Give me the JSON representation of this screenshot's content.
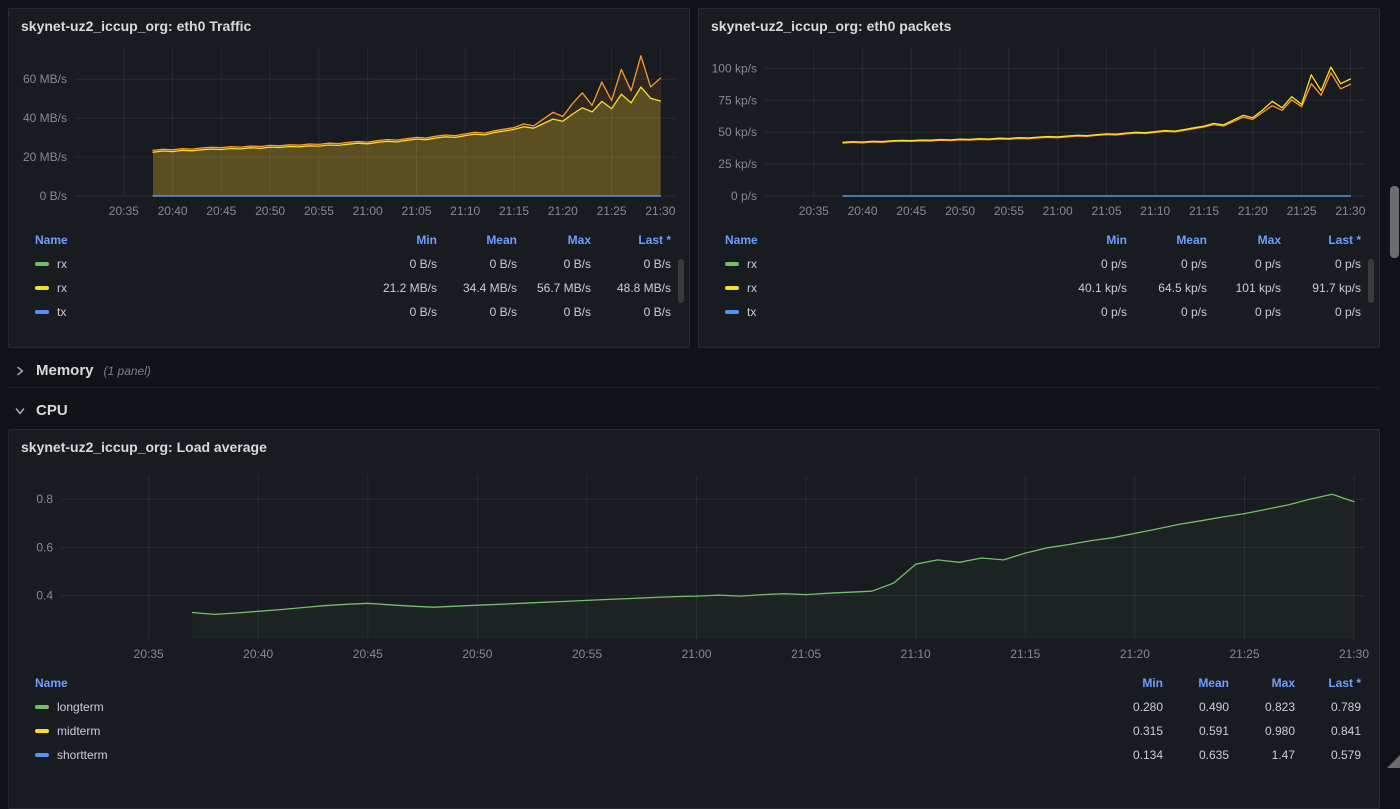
{
  "colors": {
    "green": "#73bf69",
    "yellow": "#fade2a",
    "blue": "#5794f2",
    "orange": "#ff9830",
    "link": "#6e9fff",
    "panel_bg": "#181b1f",
    "page_bg": "#111217"
  },
  "rows": [
    {
      "label": "Memory",
      "meta": "(1 panel)",
      "state": "collapsed"
    },
    {
      "label": "CPU",
      "meta": "",
      "state": "expanded"
    }
  ],
  "panels": [
    {
      "title": "skynet-uz2_iccup_org: eth0 Traffic",
      "legend": {
        "headers": [
          "Name",
          "Min",
          "Mean",
          "Max",
          "Last *"
        ],
        "rows": [
          {
            "name": "rx",
            "color": "#73bf69",
            "values": [
              "0 B/s",
              "0 B/s",
              "0 B/s",
              "0 B/s"
            ]
          },
          {
            "name": "rx",
            "color": "#fade2a",
            "values": [
              "21.2 MB/s",
              "34.4 MB/s",
              "56.7 MB/s",
              "48.8 MB/s"
            ]
          },
          {
            "name": "tx",
            "color": "#5794f2",
            "values": [
              "0 B/s",
              "0 B/s",
              "0 B/s",
              "0 B/s"
            ]
          }
        ]
      }
    },
    {
      "title": "skynet-uz2_iccup_org: eth0 packets",
      "legend": {
        "headers": [
          "Name",
          "Min",
          "Mean",
          "Max",
          "Last *"
        ],
        "rows": [
          {
            "name": "rx",
            "color": "#73bf69",
            "values": [
              "0 p/s",
              "0 p/s",
              "0 p/s",
              "0 p/s"
            ]
          },
          {
            "name": "rx",
            "color": "#fade2a",
            "values": [
              "40.1 kp/s",
              "64.5 kp/s",
              "101 kp/s",
              "91.7 kp/s"
            ]
          },
          {
            "name": "tx",
            "color": "#5794f2",
            "values": [
              "0 p/s",
              "0 p/s",
              "0 p/s",
              "0 p/s"
            ]
          }
        ]
      }
    },
    {
      "title": "skynet-uz2_iccup_org: Load average",
      "legend": {
        "headers": [
          "Name",
          "Min",
          "Mean",
          "Max",
          "Last *"
        ],
        "rows": [
          {
            "name": "longterm",
            "color": "#73bf69",
            "values": [
              "0.280",
              "0.490",
              "0.823",
              "0.789"
            ]
          },
          {
            "name": "midterm",
            "color": "#fade2a",
            "values": [
              "0.315",
              "0.591",
              "0.980",
              "0.841"
            ]
          },
          {
            "name": "shortterm",
            "color": "#5794f2",
            "values": [
              "0.134",
              "0.635",
              "1.47",
              "0.579"
            ]
          }
        ]
      }
    }
  ],
  "chart_data": [
    {
      "type": "line",
      "title": "skynet-uz2_iccup_org: eth0 Traffic",
      "unit": "MB/s",
      "margin_left": 58,
      "xlim": [
        0,
        61.5
      ],
      "ylim": [
        0,
        76
      ],
      "xticks": [
        {
          "v": 5,
          "label": "20:35"
        },
        {
          "v": 10,
          "label": "20:40"
        },
        {
          "v": 15,
          "label": "20:45"
        },
        {
          "v": 20,
          "label": "20:50"
        },
        {
          "v": 25,
          "label": "20:55"
        },
        {
          "v": 30,
          "label": "21:00"
        },
        {
          "v": 35,
          "label": "21:05"
        },
        {
          "v": 40,
          "label": "21:10"
        },
        {
          "v": 45,
          "label": "21:15"
        },
        {
          "v": 50,
          "label": "21:20"
        },
        {
          "v": 55,
          "label": "21:25"
        },
        {
          "v": 60,
          "label": "21:30"
        }
      ],
      "yticks": [
        {
          "v": 0,
          "label": "0 B/s"
        },
        {
          "v": 20,
          "label": "20 MB/s"
        },
        {
          "v": 40,
          "label": "40 MB/s"
        },
        {
          "v": 60,
          "label": "60 MB/s"
        }
      ],
      "series": [
        {
          "name": "rx",
          "color": "#73bf69",
          "start": 8,
          "step": 52,
          "fill": 0,
          "values": [
            0,
            0
          ]
        },
        {
          "name": "rx",
          "color": "#ff9830",
          "start": 8,
          "step": 1,
          "fill": 0.1,
          "values": [
            23.4,
            24.0,
            23.7,
            24.3,
            24.1,
            24.7,
            25.0,
            24.8,
            25.3,
            25.1,
            25.7,
            25.4,
            26.0,
            25.8,
            26.3,
            26.1,
            26.7,
            26.5,
            27.1,
            26.9,
            27.5,
            28.0,
            27.7,
            28.4,
            29.0,
            28.7,
            29.5,
            30.1,
            29.8,
            30.7,
            31.3,
            31.0,
            31.9,
            32.7,
            32.3,
            33.5,
            34.3,
            35.1,
            37.0,
            36.0,
            39.5,
            43.0,
            40.8,
            47.5,
            53.0,
            46.5,
            58.5,
            49.0,
            65.0,
            54.0,
            72.0,
            56.0,
            60.5
          ]
        },
        {
          "name": "rx",
          "color": "#fade2a",
          "start": 8,
          "step": 1,
          "fill": 0.22,
          "values": [
            22.5,
            23.1,
            22.8,
            23.4,
            23.2,
            23.8,
            24.1,
            23.9,
            24.4,
            24.2,
            24.8,
            24.5,
            25.1,
            24.9,
            25.4,
            25.2,
            25.8,
            25.6,
            26.2,
            26.0,
            26.6,
            27.1,
            26.8,
            27.5,
            28.1,
            27.8,
            28.6,
            29.2,
            28.9,
            29.8,
            30.4,
            30.1,
            31.0,
            31.8,
            31.4,
            32.6,
            33.4,
            34.2,
            35.6,
            34.8,
            37.2,
            39.5,
            38.4,
            42.1,
            45.3,
            43.2,
            48.6,
            44.9,
            52.3,
            47.8,
            55.9,
            50.2,
            48.8
          ]
        },
        {
          "name": "tx",
          "color": "#5794f2",
          "start": 8,
          "step": 52,
          "fill": 0,
          "values": [
            0,
            0
          ]
        }
      ]
    },
    {
      "type": "line",
      "title": "skynet-uz2_iccup_org: eth0 packets",
      "unit": "kp/s",
      "margin_left": 58,
      "xlim": [
        0,
        61.5
      ],
      "ylim": [
        0,
        116
      ],
      "xticks": [
        {
          "v": 5,
          "label": "20:35"
        },
        {
          "v": 10,
          "label": "20:40"
        },
        {
          "v": 15,
          "label": "20:45"
        },
        {
          "v": 20,
          "label": "20:50"
        },
        {
          "v": 25,
          "label": "20:55"
        },
        {
          "v": 30,
          "label": "21:00"
        },
        {
          "v": 35,
          "label": "21:05"
        },
        {
          "v": 40,
          "label": "21:10"
        },
        {
          "v": 45,
          "label": "21:15"
        },
        {
          "v": 50,
          "label": "21:20"
        },
        {
          "v": 55,
          "label": "21:25"
        },
        {
          "v": 60,
          "label": "21:30"
        }
      ],
      "yticks": [
        {
          "v": 0,
          "label": "0 p/s"
        },
        {
          "v": 25,
          "label": "25 kp/s"
        },
        {
          "v": 50,
          "label": "50 kp/s"
        },
        {
          "v": 75,
          "label": "75 kp/s"
        },
        {
          "v": 100,
          "label": "100 kp/s"
        }
      ],
      "series": [
        {
          "name": "rx",
          "color": "#73bf69",
          "start": 8,
          "step": 52,
          "fill": 0,
          "values": [
            0,
            0
          ]
        },
        {
          "name": "rx",
          "color": "#ff9830",
          "start": 8,
          "step": 1,
          "fill": 0,
          "values": [
            41.5,
            42.0,
            41.7,
            42.3,
            42.1,
            42.7,
            43.0,
            42.8,
            43.3,
            43.1,
            43.7,
            43.4,
            44.0,
            43.8,
            44.3,
            44.1,
            44.7,
            44.5,
            45.1,
            44.9,
            45.5,
            46.0,
            45.7,
            46.4,
            47.0,
            46.7,
            47.5,
            48.1,
            47.8,
            48.7,
            49.3,
            49.0,
            49.9,
            50.7,
            50.3,
            51.5,
            52.8,
            54.1,
            56.0,
            54.9,
            58.3,
            61.8,
            60.0,
            65.5,
            70.8,
            67.2,
            75.4,
            70.0,
            88.0,
            79.0,
            96.5,
            84.0,
            87.5
          ]
        },
        {
          "name": "rx",
          "color": "#fade2a",
          "start": 8,
          "step": 1,
          "fill": 0,
          "values": [
            42.1,
            42.6,
            42.3,
            42.9,
            42.7,
            43.3,
            43.6,
            43.4,
            43.9,
            43.7,
            44.3,
            44.0,
            44.6,
            44.4,
            44.9,
            44.7,
            45.3,
            45.1,
            45.7,
            45.5,
            46.1,
            46.6,
            46.3,
            47.0,
            47.6,
            47.3,
            48.1,
            48.7,
            48.4,
            49.3,
            49.9,
            49.6,
            50.5,
            51.3,
            50.9,
            52.1,
            53.5,
            54.8,
            56.9,
            55.7,
            59.5,
            63.2,
            61.4,
            67.3,
            74.2,
            69.1,
            77.8,
            71.8,
            95.0,
            82.5,
            101.0,
            88.0,
            91.7
          ]
        },
        {
          "name": "tx",
          "color": "#5794f2",
          "start": 8,
          "step": 52,
          "fill": 0,
          "values": [
            0,
            0
          ]
        }
      ]
    },
    {
      "type": "line",
      "title": "skynet-uz2_iccup_org: Load average",
      "unit": "load",
      "margin_left": 44,
      "xlim": [
        1,
        60.5
      ],
      "ylim": [
        0.22,
        0.9
      ],
      "xticks": [
        {
          "v": 5,
          "label": "20:35"
        },
        {
          "v": 10,
          "label": "20:40"
        },
        {
          "v": 15,
          "label": "20:45"
        },
        {
          "v": 20,
          "label": "20:50"
        },
        {
          "v": 25,
          "label": "20:55"
        },
        {
          "v": 30,
          "label": "21:00"
        },
        {
          "v": 35,
          "label": "21:05"
        },
        {
          "v": 40,
          "label": "21:10"
        },
        {
          "v": 45,
          "label": "21:15"
        },
        {
          "v": 50,
          "label": "21:20"
        },
        {
          "v": 55,
          "label": "21:25"
        },
        {
          "v": 60,
          "label": "21:30"
        }
      ],
      "yticks": [
        {
          "v": 0.4,
          "label": "0.4"
        },
        {
          "v": 0.6,
          "label": "0.6"
        },
        {
          "v": 0.8,
          "label": "0.8"
        }
      ],
      "series": [
        {
          "name": "longterm",
          "color": "#73bf69",
          "start": 7,
          "step": 1,
          "fill": 0.05,
          "values": [
            0.33,
            0.322,
            0.328,
            0.335,
            0.342,
            0.35,
            0.358,
            0.364,
            0.368,
            0.362,
            0.356,
            0.352,
            0.356,
            0.36,
            0.364,
            0.368,
            0.372,
            0.376,
            0.38,
            0.384,
            0.388,
            0.392,
            0.396,
            0.398,
            0.402,
            0.398,
            0.404,
            0.408,
            0.404,
            0.41,
            0.414,
            0.418,
            0.452,
            0.53,
            0.548,
            0.538,
            0.556,
            0.548,
            0.576,
            0.598,
            0.612,
            0.628,
            0.64,
            0.658,
            0.676,
            0.695,
            0.71,
            0.726,
            0.74,
            0.758,
            0.776,
            0.8,
            0.82,
            0.789
          ]
        }
      ]
    }
  ]
}
